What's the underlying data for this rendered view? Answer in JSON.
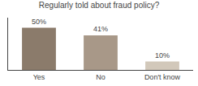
{
  "chart_data": {
    "type": "bar",
    "title": "Regularly told about fraud policy?",
    "categories": [
      "Yes",
      "No",
      "Don't know"
    ],
    "values": [
      50,
      41,
      10
    ],
    "value_labels": [
      "50%",
      "41%",
      "10%"
    ],
    "colors": [
      "#8B7B6B",
      "#A89888",
      "#D2C8BA"
    ],
    "ylim": [
      0,
      62
    ],
    "grid": false,
    "data_labels": true,
    "tick_labels": "x"
  }
}
